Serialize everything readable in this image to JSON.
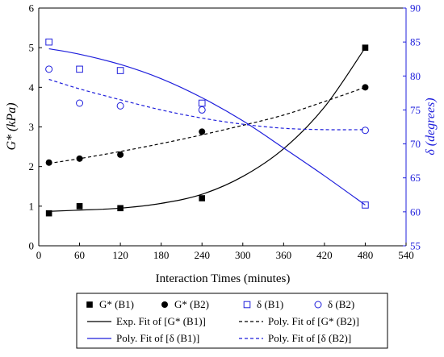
{
  "chart_data": {
    "type": "scatter",
    "xlabel": "Interaction Times (minutes)",
    "ylabel_left": "G* (kPa)",
    "ylabel_right": "δ (degrees)",
    "xlim": [
      0,
      540
    ],
    "ylim_left": [
      0,
      6
    ],
    "ylim_right": [
      55,
      90
    ],
    "x_ticks": [
      0,
      60,
      120,
      180,
      240,
      300,
      360,
      420,
      480,
      540
    ],
    "y_left_ticks": [
      0,
      1,
      2,
      3,
      4,
      5,
      6
    ],
    "y_right_ticks": [
      55,
      60,
      65,
      70,
      75,
      80,
      85,
      90
    ],
    "grid": false,
    "legend_position": "bottom",
    "colors": {
      "black": "#000000",
      "blue": "#1f1fdc"
    },
    "series": [
      {
        "name": "G* (B1)",
        "axis": "left",
        "marker": "filled-square",
        "color": "#000000",
        "x": [
          15,
          60,
          120,
          240,
          480
        ],
        "y": [
          0.82,
          1.0,
          0.95,
          1.2,
          5.0
        ]
      },
      {
        "name": "G* (B2)",
        "axis": "left",
        "marker": "filled-circle",
        "color": "#000000",
        "x": [
          15,
          60,
          120,
          240,
          480
        ],
        "y": [
          2.1,
          2.2,
          2.3,
          2.88,
          4.0
        ]
      },
      {
        "name": "δ (B1)",
        "axis": "right",
        "marker": "open-square",
        "color": "#1f1fdc",
        "x": [
          15,
          60,
          120,
          240,
          480
        ],
        "y": [
          85.0,
          81.0,
          80.8,
          76.0,
          61.0
        ]
      },
      {
        "name": "δ (B2)",
        "axis": "right",
        "marker": "open-circle",
        "color": "#1f1fdc",
        "x": [
          15,
          60,
          120,
          240,
          480
        ],
        "y": [
          81.0,
          76.0,
          75.6,
          75.0,
          72.0
        ]
      }
    ],
    "fits": [
      {
        "name": "Exp. Fit of [G* (B1)]",
        "axis": "left",
        "style": "solid",
        "color": "#000000",
        "x": [
          15,
          60,
          120,
          180,
          240,
          300,
          360,
          420,
          480
        ],
        "y": [
          0.87,
          0.9,
          0.95,
          1.07,
          1.3,
          1.75,
          2.45,
          3.5,
          5.0
        ]
      },
      {
        "name": "Poly. Fit of [G* (B2)]",
        "axis": "left",
        "style": "dashed",
        "color": "#000000",
        "x": [
          15,
          60,
          120,
          180,
          240,
          300,
          360,
          420,
          480
        ],
        "y": [
          2.08,
          2.2,
          2.38,
          2.58,
          2.8,
          3.04,
          3.3,
          3.64,
          4.0
        ]
      },
      {
        "name": "Poly. Fit of [δ (B1)]",
        "axis": "right",
        "style": "solid",
        "color": "#1f1fdc",
        "x": [
          15,
          60,
          120,
          180,
          240,
          300,
          360,
          420,
          480
        ],
        "y": [
          84.0,
          83.2,
          81.7,
          79.6,
          76.8,
          73.4,
          69.4,
          65.3,
          61.0
        ]
      },
      {
        "name": "Poly. Fit of [δ (B2)]",
        "axis": "right",
        "style": "dashed",
        "color": "#1f1fdc",
        "x": [
          15,
          60,
          120,
          180,
          240,
          300,
          360,
          420,
          480
        ],
        "y": [
          79.5,
          78.1,
          76.5,
          75.0,
          73.8,
          72.9,
          72.3,
          72.1,
          72.1
        ]
      }
    ],
    "legend": [
      [
        "G* (B1)",
        "G* (B2)",
        "δ (B1)",
        "δ (B2)"
      ],
      [
        "Exp. Fit of [G* (B1)]",
        "Poly. Fit of [G* (B2)]"
      ],
      [
        "Poly. Fit of [δ (B1)]",
        "Poly. Fit of [δ (B2)]"
      ]
    ]
  }
}
